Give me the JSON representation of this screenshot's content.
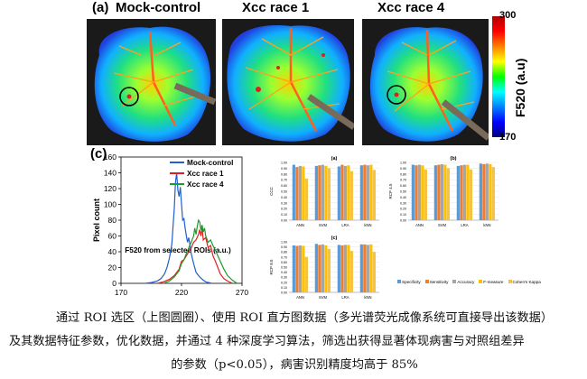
{
  "figure": {
    "panel_a_label": "(a)",
    "panel_c_label": "(c)",
    "images": [
      {
        "title": "Mock-control"
      },
      {
        "title": "Xcc race 1"
      },
      {
        "title": "Xcc race 4"
      }
    ],
    "colorbar": {
      "max": "300",
      "min": "170",
      "label": "F520 (a.u)",
      "colors": [
        "#c00000",
        "#ff0000",
        "#ff8000",
        "#ffff00",
        "#00ff00",
        "#00ffff",
        "#0080ff",
        "#0000ff",
        "#000080"
      ]
    }
  },
  "chart_data": [
    {
      "type": "line",
      "xlabel": "F520 from selected ROIs (a.u.)",
      "ylabel": "Pixel count",
      "xlim": [
        170,
        270
      ],
      "ylim": [
        0,
        160
      ],
      "xticks": [
        "170",
        "220",
        "270"
      ],
      "yticks": [
        "0",
        "20",
        "40",
        "60",
        "80",
        "100",
        "120",
        "140",
        "160"
      ],
      "legend": "top-right",
      "series": [
        {
          "name": "Mock-control",
          "color": "#1f5fd0",
          "x": [
            190,
            195,
            200,
            203,
            206,
            208,
            210,
            212,
            213,
            214,
            215,
            216,
            217,
            218,
            219,
            220,
            221,
            222,
            223,
            224,
            225,
            226,
            227,
            228,
            230,
            232,
            235,
            238,
            240,
            245
          ],
          "y": [
            0,
            1,
            3,
            6,
            12,
            20,
            32,
            50,
            72,
            95,
            128,
            140,
            118,
            110,
            122,
            100,
            80,
            82,
            70,
            60,
            52,
            58,
            48,
            38,
            25,
            14,
            8,
            4,
            2,
            0
          ]
        },
        {
          "name": "Xcc race 1",
          "color": "#e02020",
          "x": [
            200,
            205,
            210,
            214,
            218,
            220,
            222,
            224,
            226,
            228,
            230,
            232,
            234,
            235,
            236,
            237,
            238,
            240,
            242,
            244,
            246,
            248,
            250,
            252,
            255,
            258,
            262
          ],
          "y": [
            0,
            2,
            5,
            10,
            18,
            28,
            30,
            35,
            40,
            45,
            52,
            55,
            62,
            68,
            60,
            70,
            55,
            58,
            45,
            48,
            35,
            28,
            20,
            12,
            6,
            3,
            0
          ]
        },
        {
          "name": "Xcc race 4",
          "color": "#1f9a2f",
          "x": [
            205,
            210,
            214,
            218,
            220,
            222,
            224,
            226,
            228,
            230,
            231,
            232,
            233,
            234,
            235,
            236,
            237,
            238,
            239,
            240,
            242,
            244,
            246,
            248,
            250,
            252,
            255,
            258,
            262,
            266
          ],
          "y": [
            0,
            3,
            8,
            16,
            25,
            30,
            38,
            45,
            52,
            60,
            70,
            62,
            72,
            80,
            78,
            68,
            74,
            65,
            70,
            60,
            52,
            55,
            48,
            42,
            35,
            28,
            18,
            10,
            4,
            0
          ]
        }
      ]
    },
    {
      "type": "bar",
      "title": "(a)",
      "ylabel": "CCC",
      "ylim": [
        0,
        1
      ],
      "categories": [
        "ANN",
        "SVM",
        "LRA",
        "kNN"
      ],
      "series": [
        {
          "name": "Specificity",
          "color": "#5b9bd5",
          "values": [
            0.96,
            0.94,
            0.93,
            0.95
          ]
        },
        {
          "name": "Sensitivity",
          "color": "#ed7d31",
          "values": [
            0.92,
            0.95,
            0.96,
            0.96
          ]
        },
        {
          "name": "Accuracy",
          "color": "#a5a5a5",
          "values": [
            0.94,
            0.96,
            0.94,
            0.95
          ]
        },
        {
          "name": "F-measure",
          "color": "#ffc000",
          "values": [
            0.93,
            0.94,
            0.95,
            0.96
          ]
        },
        {
          "name": "Cohen's Kappa",
          "color": "#f5c242",
          "values": [
            0.72,
            0.9,
            0.85,
            0.87
          ]
        }
      ]
    },
    {
      "type": "bar",
      "title": "(b)",
      "ylabel": "RCP 4.5",
      "ylim": [
        0,
        1
      ],
      "categories": [
        "ANN",
        "SVM",
        "LRA",
        "kNN"
      ],
      "series": [
        {
          "name": "Specificity",
          "color": "#5b9bd5",
          "values": [
            0.96,
            0.95,
            0.94,
            0.98
          ]
        },
        {
          "name": "Sensitivity",
          "color": "#ed7d31",
          "values": [
            0.95,
            0.96,
            0.95,
            0.97
          ]
        },
        {
          "name": "Accuracy",
          "color": "#a5a5a5",
          "values": [
            0.96,
            0.97,
            0.96,
            0.98
          ]
        },
        {
          "name": "F-measure",
          "color": "#ffc000",
          "values": [
            0.95,
            0.96,
            0.96,
            0.97
          ]
        },
        {
          "name": "Cohen's Kappa",
          "color": "#f5c242",
          "values": [
            0.88,
            0.9,
            0.88,
            0.92
          ]
        }
      ]
    },
    {
      "type": "bar",
      "title": "(c)",
      "ylabel": "RCP 8.5",
      "ylim": [
        0,
        1
      ],
      "categories": [
        "ANN",
        "SVM",
        "LRA",
        "kNN"
      ],
      "series": [
        {
          "name": "Specificity",
          "color": "#5b9bd5",
          "values": [
            0.93,
            0.96,
            0.94,
            0.95
          ]
        },
        {
          "name": "Sensitivity",
          "color": "#ed7d31",
          "values": [
            0.92,
            0.94,
            0.93,
            0.95
          ]
        },
        {
          "name": "Accuracy",
          "color": "#a5a5a5",
          "values": [
            0.93,
            0.95,
            0.94,
            0.94
          ]
        },
        {
          "name": "F-measure",
          "color": "#ffc000",
          "values": [
            0.92,
            0.93,
            0.94,
            0.95
          ]
        },
        {
          "name": "Cohen's Kappa",
          "color": "#f5c242",
          "values": [
            0.7,
            0.86,
            0.82,
            0.8
          ]
        }
      ]
    }
  ],
  "bar_legend": [
    "Specificity",
    "Sensitivity",
    "Accuracy",
    "F-measure",
    "Cohen's Kappa"
  ],
  "caption": {
    "line1": "通过 ROI 选区（上图圆圈）、使用 ROI 直方图数据（多光谱荧光成像系统可直接导出该数据）",
    "line2": "及其数据特征参数，优化数据，并通过 4 种深度学习算法，筛选出获得显著体现病害与对照组差异",
    "line3": "的参数（p<0.05），病害识别精度均高于 85%"
  }
}
